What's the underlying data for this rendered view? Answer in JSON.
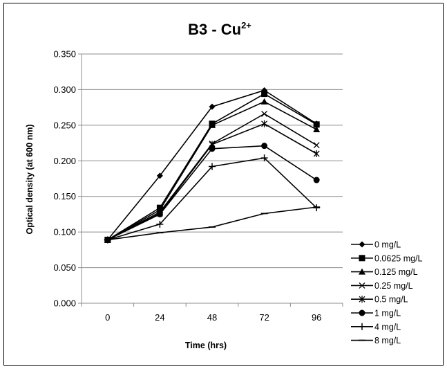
{
  "chart_data": {
    "type": "line",
    "title": "B3 - Cu",
    "title_superscript": "2+",
    "xlabel": "Time (hrs)",
    "ylabel": "Optical density (at 600 nm)",
    "categories": [
      "0",
      "24",
      "48",
      "72",
      "96"
    ],
    "ylim": [
      0,
      0.35
    ],
    "y_ticks": [
      "0.000",
      "0.050",
      "0.100",
      "0.150",
      "0.200",
      "0.250",
      "0.300",
      "0.350"
    ],
    "grid": "horizontal",
    "legend_position": "right",
    "series": [
      {
        "name": "0 mg/L",
        "marker": "diamond",
        "values": [
          0.089,
          0.179,
          0.276,
          0.299,
          0.252
        ]
      },
      {
        "name": "0.0625 mg/L",
        "marker": "square",
        "values": [
          0.089,
          0.134,
          0.252,
          0.294,
          0.251
        ]
      },
      {
        "name": "0.125 mg/L",
        "marker": "triangle",
        "values": [
          0.089,
          0.131,
          0.25,
          0.283,
          0.244
        ]
      },
      {
        "name": "0.25 mg/L",
        "marker": "x",
        "values": [
          0.089,
          0.128,
          0.224,
          0.266,
          0.222
        ]
      },
      {
        "name": "0.5 mg/L",
        "marker": "star",
        "values": [
          0.089,
          0.126,
          0.223,
          0.252,
          0.21
        ]
      },
      {
        "name": "1 mg/L",
        "marker": "circle",
        "values": [
          0.089,
          0.125,
          0.217,
          0.221,
          0.173
        ]
      },
      {
        "name": "4 mg/L",
        "marker": "plus",
        "values": [
          0.089,
          0.111,
          0.192,
          0.204,
          0.134
        ]
      },
      {
        "name": "8 mg/L",
        "marker": "dash",
        "values": [
          0.089,
          0.099,
          0.107,
          0.126,
          0.135
        ]
      }
    ],
    "colors": {
      "line": "#000000",
      "grid": "#8c8c8c",
      "axis": "#8c8c8c"
    }
  }
}
